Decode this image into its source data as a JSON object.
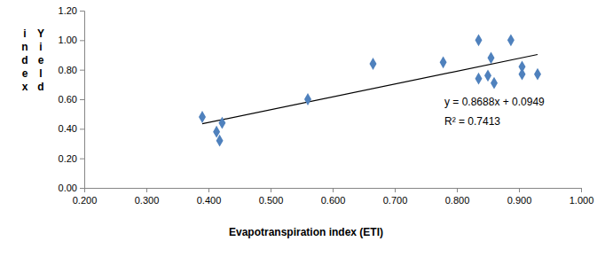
{
  "chart_data": {
    "type": "scatter",
    "x_label": "Evapotranspiration index (ETI)",
    "y_label": "Yield index",
    "x": [
      0.39,
      0.413,
      0.418,
      0.422,
      0.56,
      0.665,
      0.778,
      0.835,
      0.835,
      0.85,
      0.855,
      0.86,
      0.887,
      0.905,
      0.905,
      0.93
    ],
    "values": [
      0.48,
      0.38,
      0.32,
      0.44,
      0.6,
      0.84,
      0.85,
      1.0,
      0.74,
      0.76,
      0.88,
      0.71,
      1.0,
      0.82,
      0.77,
      0.77
    ],
    "color": "#4f81bd",
    "marker": "diamond",
    "trendline": {
      "x": [
        0.39,
        0.93
      ],
      "values": [
        0.434,
        0.903
      ],
      "color": "#000000"
    },
    "annotations": [
      "y = 0.8688x + 0.0949",
      "R² = 0.7413"
    ],
    "xlim": [
      0.2,
      1.0
    ],
    "xticks": [
      {
        "value": 0.2,
        "label": "0.200"
      },
      {
        "value": 0.3,
        "label": "0.300"
      },
      {
        "value": 0.4,
        "label": "0.400"
      },
      {
        "value": 0.5,
        "label": "0.500"
      },
      {
        "value": 0.6,
        "label": "0.600"
      },
      {
        "value": 0.7,
        "label": "0.700"
      },
      {
        "value": 0.8,
        "label": "0.800"
      },
      {
        "value": 0.9,
        "label": "0.900"
      },
      {
        "value": 1.0,
        "label": "1.000"
      }
    ],
    "ylim": [
      0,
      1.2
    ],
    "yticks": [
      {
        "value": 0,
        "label": "0.00"
      },
      {
        "value": 0.2,
        "label": "0.20"
      },
      {
        "value": 0.4,
        "label": "0.40"
      },
      {
        "value": 0.6,
        "label": "0.60"
      },
      {
        "value": 0.8,
        "label": "0.80"
      },
      {
        "value": 1.0,
        "label": "1.00"
      },
      {
        "value": 1.2,
        "label": "1.20"
      }
    ],
    "grid": false
  }
}
